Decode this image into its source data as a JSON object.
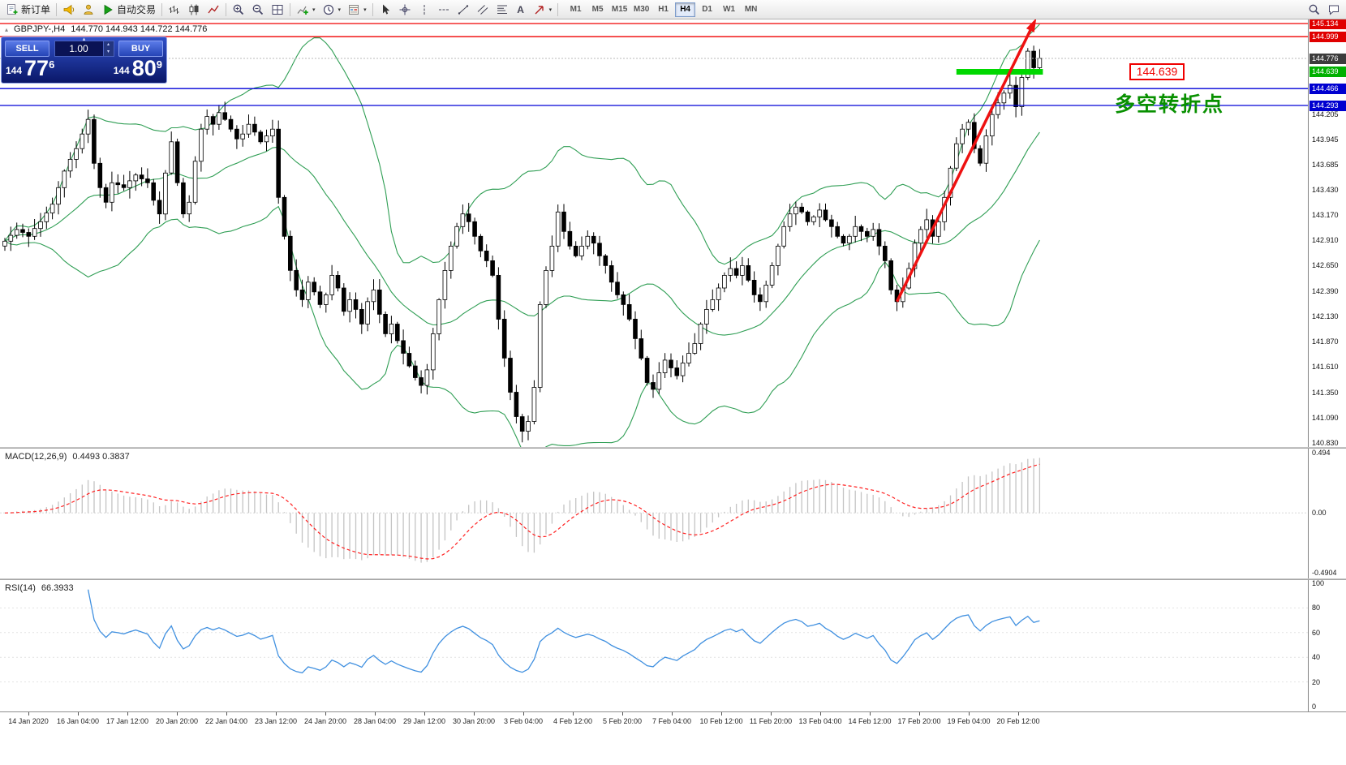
{
  "toolbar": {
    "new_order_label": "新订单",
    "auto_trading_label": "自动交易",
    "timeframes": [
      "M1",
      "M5",
      "M15",
      "M30",
      "H1",
      "H4",
      "D1",
      "W1",
      "MN"
    ],
    "active_timeframe": "H4",
    "text_tool_glyph": "A",
    "caret_up": "▴",
    "caret_down": "▾"
  },
  "chart": {
    "collapse_glyph": "▴",
    "symbol_title": "GBPJPY-,H4",
    "ohlc": "144.770 144.943 144.722 144.776",
    "trade_panel": {
      "collapse_glyph": "▴",
      "sell_label": "SELL",
      "buy_label": "BUY",
      "volume": "1.00",
      "sell_price": {
        "main": "144",
        "big": "77",
        "pip": "6"
      },
      "buy_price": {
        "main": "144",
        "big": "80",
        "pip": "9"
      }
    },
    "annotation_price": "144.639",
    "annotation_text": "多空转折点"
  },
  "price_axis": {
    "boxed": [
      {
        "value": "145.134",
        "color": "#e00000"
      },
      {
        "value": "144.999",
        "color": "#e00000"
      },
      {
        "value": "144.776",
        "color": "#3c3c3c"
      },
      {
        "value": "144.639",
        "color": "#00b000"
      },
      {
        "value": "144.466",
        "color": "#0000d0"
      },
      {
        "value": "144.293",
        "color": "#0000d0"
      }
    ],
    "plain": [
      "144.205",
      "143.945",
      "143.685",
      "143.430",
      "143.170",
      "142.910",
      "142.650",
      "142.390",
      "142.130",
      "141.870",
      "141.610",
      "141.350",
      "141.090",
      "140.830"
    ]
  },
  "macd": {
    "name": "MACD(12,26,9)",
    "values": "0.4493 0.3837",
    "scale": [
      {
        "label": "0.494",
        "value": 0.494
      },
      {
        "label": "0.00",
        "value": 0
      },
      {
        "label": "-0.4904",
        "value": -0.4904
      }
    ]
  },
  "rsi": {
    "name": "RSI(14)",
    "value": "66.3933",
    "scale": [
      100,
      80,
      60,
      40,
      20,
      0
    ]
  },
  "time_axis": [
    "14 Jan 2020",
    "16 Jan 04:00",
    "17 Jan 12:00",
    "20 Jan 20:00",
    "22 Jan 04:00",
    "23 Jan 12:00",
    "24 Jan 20:00",
    "28 Jan 04:00",
    "29 Jan 12:00",
    "30 Jan 20:00",
    "3 Feb 04:00",
    "4 Feb 12:00",
    "5 Feb 20:00",
    "7 Feb 04:00",
    "10 Feb 12:00",
    "11 Feb 20:00",
    "13 Feb 04:00",
    "14 Feb 12:00",
    "17 Feb 20:00",
    "19 Feb 04:00",
    "20 Feb 12:00"
  ],
  "chart_data": {
    "type": "candlestick",
    "symbol": "GBPJPY",
    "timeframe": "H4",
    "current": {
      "open": 144.77,
      "high": 144.943,
      "low": 144.722,
      "close": 144.776
    },
    "ylim": [
      140.83,
      145.18
    ],
    "closes": [
      142.9,
      142.96,
      143.02,
      142.99,
      142.95,
      143.03,
      143.1,
      143.19,
      143.28,
      143.45,
      143.62,
      143.74,
      143.85,
      144.0,
      144.15,
      143.7,
      143.45,
      143.3,
      143.5,
      143.48,
      143.45,
      143.52,
      143.58,
      143.54,
      143.5,
      143.32,
      143.18,
      143.6,
      143.92,
      143.5,
      143.18,
      143.3,
      143.72,
      144.05,
      144.18,
      144.1,
      144.22,
      144.15,
      144.05,
      143.95,
      144.0,
      144.1,
      144.02,
      143.92,
      143.98,
      144.05,
      143.35,
      142.95,
      142.6,
      142.4,
      142.3,
      142.48,
      142.38,
      142.25,
      142.35,
      142.55,
      142.42,
      142.18,
      142.3,
      142.2,
      142.05,
      142.28,
      142.4,
      142.15,
      141.95,
      142.05,
      141.88,
      141.75,
      141.62,
      141.5,
      141.42,
      141.58,
      141.95,
      142.3,
      142.6,
      142.85,
      143.05,
      143.18,
      143.1,
      142.95,
      142.8,
      142.7,
      142.55,
      142.1,
      141.7,
      141.35,
      141.1,
      140.95,
      141.05,
      141.4,
      142.25,
      142.6,
      142.85,
      143.2,
      143.0,
      142.85,
      142.75,
      142.85,
      142.95,
      142.88,
      142.75,
      142.65,
      142.48,
      142.35,
      142.25,
      142.1,
      141.9,
      141.7,
      141.45,
      141.38,
      141.55,
      141.68,
      141.6,
      141.52,
      141.65,
      141.75,
      141.85,
      142.05,
      142.2,
      142.3,
      142.42,
      142.55,
      142.62,
      142.55,
      142.65,
      142.5,
      142.35,
      142.28,
      142.45,
      142.65,
      142.85,
      143.05,
      143.18,
      143.25,
      143.2,
      143.1,
      143.15,
      143.22,
      143.12,
      143.05,
      142.95,
      142.88,
      142.95,
      143.05,
      143.0,
      142.95,
      143.02,
      142.85,
      142.7,
      142.4,
      142.28,
      142.42,
      142.62,
      142.88,
      143.02,
      143.12,
      142.95,
      143.1,
      143.35,
      143.65,
      143.9,
      144.05,
      144.12,
      143.85,
      143.7,
      143.98,
      144.2,
      144.32,
      144.42,
      144.5,
      144.28,
      144.58,
      144.85,
      144.68,
      144.776
    ],
    "overlays": {
      "bollinger_period": 20,
      "hlines": [
        {
          "price": 145.134,
          "color": "#f00000"
        },
        {
          "price": 144.999,
          "color": "#f00000"
        },
        {
          "price": 144.466,
          "color": "#0000d8"
        },
        {
          "price": 144.293,
          "color": "#0000d8"
        }
      ],
      "green_zone": {
        "price": 144.639,
        "from_candle": 160
      },
      "trend_arrow": {
        "from_candle": 150,
        "from_price": 142.28,
        "to_price": 145.1
      }
    },
    "indicators": {
      "macd": {
        "fast": 12,
        "slow": 26,
        "signal": 9,
        "ylim": [
          -0.4904,
          0.494
        ]
      },
      "rsi": {
        "period": 14,
        "ylim": [
          0,
          100
        ]
      }
    }
  },
  "colors": {
    "bull": "#ffffff",
    "bear": "#000000",
    "bollinger": "#2f9e54",
    "green_zone": "#00d800",
    "arrow": "#ee1111",
    "macd_hist": "#c4c4c4",
    "macd_signal": "#ff2020",
    "rsi_line": "#4090e0",
    "annotation_green": "#089000",
    "annotation_red": "#f00000"
  }
}
